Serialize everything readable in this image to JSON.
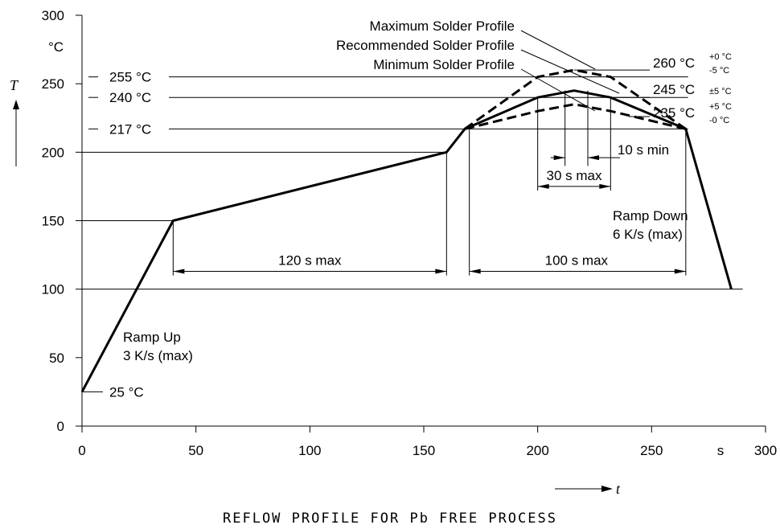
{
  "chart_data": {
    "type": "line",
    "title": "REFLOW PROFILE FOR Pb FREE PROCESS",
    "xlabel": "t",
    "ylabel": "T",
    "x_unit": "s",
    "y_unit": "°C",
    "xlim": [
      0,
      300
    ],
    "ylim": [
      0,
      300
    ],
    "x_ticks": [
      0,
      50,
      100,
      150,
      200,
      250,
      300
    ],
    "y_ticks": [
      0,
      50,
      100,
      150,
      200,
      250,
      300
    ],
    "grid": false,
    "series": [
      {
        "name": "Recommended Solder Profile",
        "style": "solid",
        "points": [
          [
            0,
            25
          ],
          [
            40,
            150
          ],
          [
            160,
            200
          ],
          [
            168,
            217
          ],
          [
            200,
            240
          ],
          [
            216,
            245
          ],
          [
            232,
            240
          ],
          [
            265,
            217
          ],
          [
            285,
            100
          ]
        ]
      },
      {
        "name": "Maximum Solder Profile",
        "style": "dashed",
        "points": [
          [
            168,
            217
          ],
          [
            200,
            255
          ],
          [
            216,
            260
          ],
          [
            232,
            255
          ],
          [
            265,
            217
          ]
        ]
      },
      {
        "name": "Minimum Solder Profile",
        "style": "dashed",
        "points": [
          [
            168,
            217
          ],
          [
            200,
            230
          ],
          [
            216,
            235
          ],
          [
            232,
            230
          ],
          [
            265,
            217
          ]
        ]
      }
    ],
    "ref_levels": [
      {
        "label": "255 °C",
        "y": 255
      },
      {
        "label": "240 °C",
        "y": 240
      },
      {
        "label": "217 °C",
        "y": 217
      },
      {
        "label": "25 °C",
        "y": 25
      }
    ],
    "peak_labels": [
      {
        "main": "260 °C",
        "sup": "+0 °C",
        "sub": "-5 °C"
      },
      {
        "main": "245 °C",
        "tol": "±5 °C"
      },
      {
        "main": "235 °C",
        "sup": "+5 °C",
        "sub": "-0 °C"
      }
    ],
    "dimensions": [
      {
        "label": "120 s max",
        "from": 40,
        "to": 160
      },
      {
        "label": "100 s max",
        "from": 170,
        "to": 265
      },
      {
        "label": "30 s max",
        "from": 200,
        "to": 232
      },
      {
        "label": "10 s min",
        "from": 212,
        "to": 222
      }
    ],
    "annotations": [
      {
        "text": [
          "Ramp Up",
          "3 K/s (max)"
        ]
      },
      {
        "text": [
          "Ramp Down",
          "6 K/s (max)"
        ]
      }
    ]
  }
}
